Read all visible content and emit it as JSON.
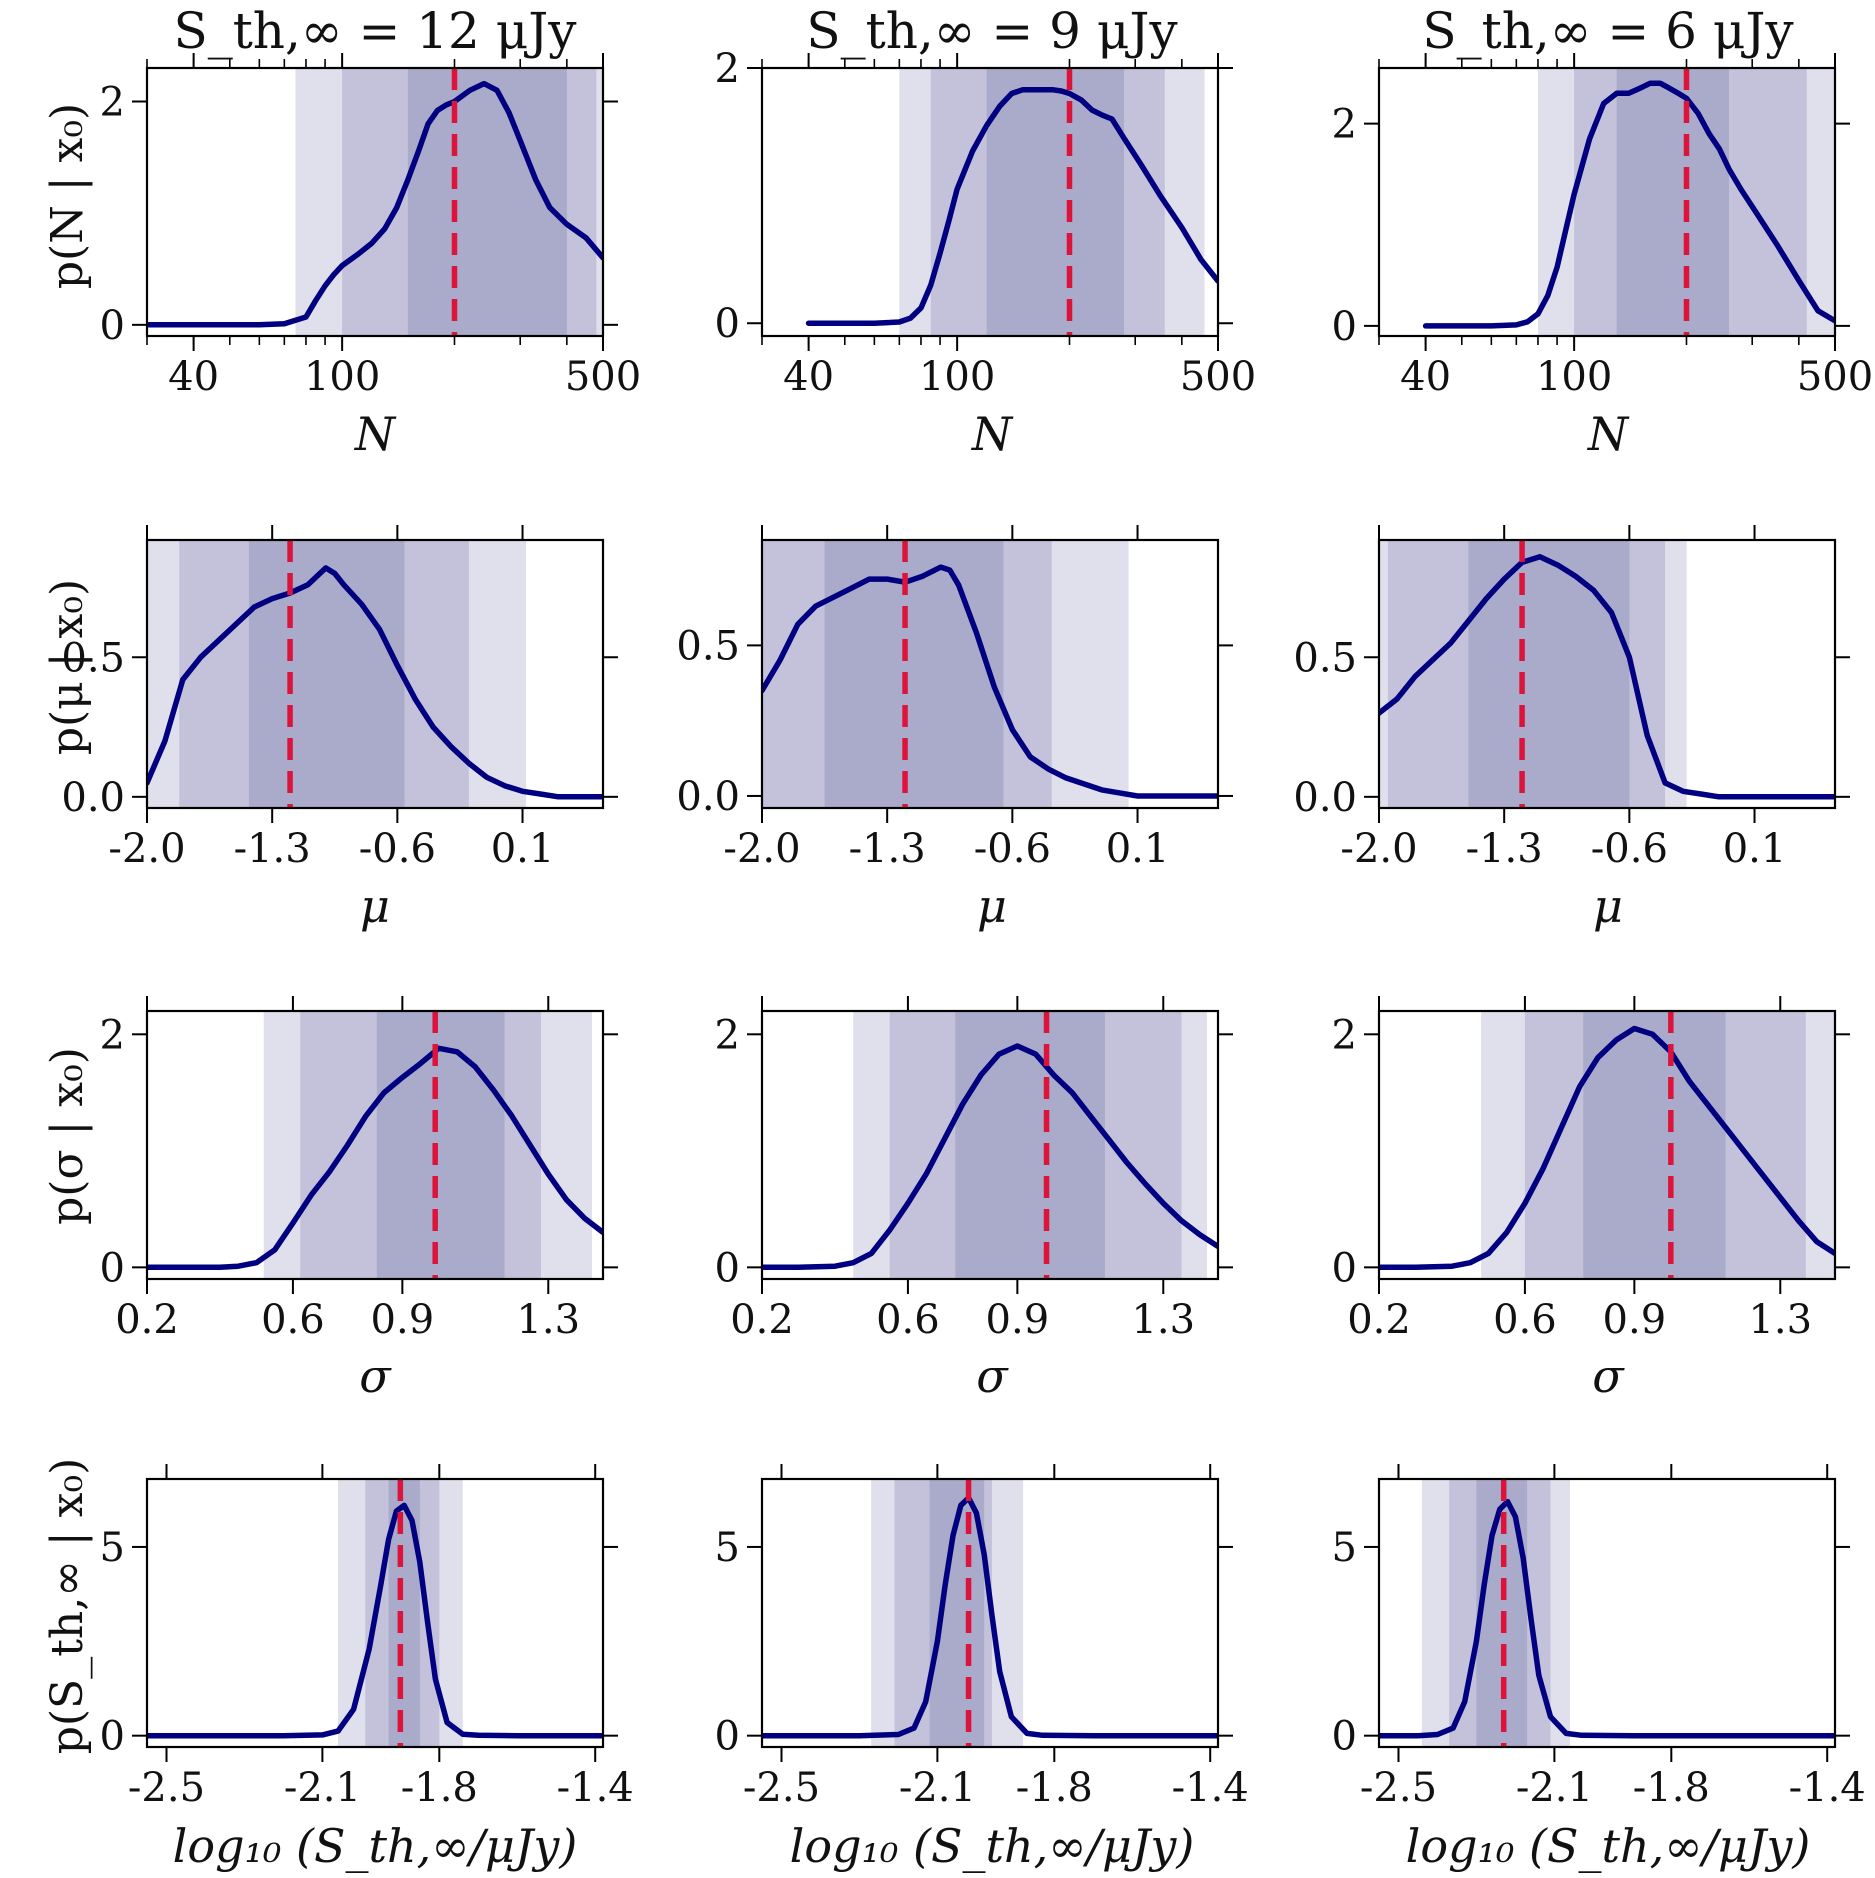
{
  "figure": {
    "columns": [
      {
        "title": "S_th,∞ = 12 μJy"
      },
      {
        "title": "S_th,∞ = 9 μJy"
      },
      {
        "title": "S_th,∞ = 6 μJy"
      }
    ],
    "rows": [
      {
        "ylabel": "p(N | x₀)",
        "xlabel": "N"
      },
      {
        "ylabel": "p(μ | x₀)",
        "xlabel": "μ"
      },
      {
        "ylabel": "p(σ | x₀)",
        "xlabel": "σ"
      },
      {
        "ylabel": "p(S_th,∞ | x₀)",
        "xlabel": "log₁₀ (S_th,∞/μJy)"
      }
    ],
    "colors": {
      "posterior": "#000080",
      "truth": "#dc143c",
      "band_1sigma": "#aaaaca",
      "band_2sigma": "#c3c2da",
      "band_3sigma": "#e0dfec"
    }
  },
  "chart_data": [
    {
      "type": "line",
      "row": 0,
      "col": 0,
      "xscale": "log",
      "xlim": [
        30,
        500
      ],
      "ylim": [
        -0.1,
        2.3
      ],
      "xticks": [
        40,
        100,
        500
      ],
      "xticklabels": [
        "40",
        "100",
        "500"
      ],
      "yticks": [
        0,
        2
      ],
      "yticklabels": [
        "0",
        "2"
      ],
      "x": [
        30,
        60,
        70,
        80,
        85,
        90,
        95,
        100,
        110,
        120,
        130,
        140,
        150,
        160,
        170,
        180,
        190,
        200,
        220,
        240,
        260,
        280,
        300,
        330,
        360,
        400,
        450,
        500
      ],
      "y": [
        0,
        0,
        0.01,
        0.07,
        0.22,
        0.35,
        0.45,
        0.53,
        0.63,
        0.73,
        0.86,
        1.05,
        1.3,
        1.55,
        1.8,
        1.92,
        1.97,
        2.0,
        2.1,
        2.16,
        2.1,
        1.9,
        1.65,
        1.3,
        1.05,
        0.9,
        0.78,
        0.6
      ],
      "truth": 200,
      "bands": [
        [
          75,
          500
        ],
        [
          100,
          480
        ],
        [
          150,
          400
        ]
      ]
    },
    {
      "type": "line",
      "row": 0,
      "col": 1,
      "xscale": "log",
      "xlim": [
        30,
        500
      ],
      "ylim": [
        -0.1,
        2.0
      ],
      "xticks": [
        40,
        100,
        500
      ],
      "xticklabels": [
        "40",
        "100",
        "500"
      ],
      "yticks": [
        0,
        2
      ],
      "yticklabels": [
        "0",
        "2"
      ],
      "x": [
        40,
        60,
        70,
        75,
        80,
        85,
        90,
        95,
        100,
        110,
        120,
        130,
        140,
        150,
        160,
        170,
        180,
        190,
        200,
        215,
        230,
        245,
        260,
        280,
        310,
        350,
        400,
        450,
        500
      ],
      "y": [
        0,
        0,
        0.01,
        0.04,
        0.12,
        0.3,
        0.55,
        0.8,
        1.05,
        1.35,
        1.55,
        1.7,
        1.8,
        1.83,
        1.83,
        1.83,
        1.83,
        1.82,
        1.8,
        1.75,
        1.67,
        1.63,
        1.6,
        1.45,
        1.25,
        1.0,
        0.75,
        0.5,
        0.33
      ],
      "truth": 200,
      "bands": [
        [
          70,
          460
        ],
        [
          85,
          360
        ],
        [
          120,
          280
        ]
      ]
    },
    {
      "type": "line",
      "row": 0,
      "col": 2,
      "xscale": "log",
      "xlim": [
        30,
        500
      ],
      "ylim": [
        -0.1,
        2.55
      ],
      "xticks": [
        40,
        100,
        500
      ],
      "xticklabels": [
        "40",
        "100",
        "500"
      ],
      "yticks": [
        0,
        2
      ],
      "yticklabels": [
        "0",
        "2"
      ],
      "x": [
        40,
        60,
        70,
        75,
        80,
        85,
        90,
        95,
        100,
        110,
        120,
        130,
        140,
        150,
        160,
        170,
        180,
        190,
        200,
        215,
        230,
        245,
        260,
        280,
        310,
        350,
        400,
        450,
        500
      ],
      "y": [
        0,
        0,
        0.01,
        0.04,
        0.12,
        0.3,
        0.58,
        0.95,
        1.3,
        1.85,
        2.2,
        2.3,
        2.3,
        2.35,
        2.4,
        2.4,
        2.35,
        2.3,
        2.25,
        2.1,
        1.9,
        1.75,
        1.55,
        1.35,
        1.1,
        0.8,
        0.45,
        0.15,
        0.05
      ],
      "truth": 200,
      "bands": [
        [
          80,
          500
        ],
        [
          100,
          420
        ],
        [
          130,
          260
        ]
      ]
    },
    {
      "type": "line",
      "row": 1,
      "col": 0,
      "xlim": [
        -2.0,
        0.55
      ],
      "ylim": [
        -0.04,
        0.92
      ],
      "xticks": [
        -2.0,
        -1.3,
        -0.6,
        0.1
      ],
      "xticklabels": [
        "-2.0",
        "-1.3",
        "-0.6",
        "0.1"
      ],
      "yticks": [
        0.0,
        0.5
      ],
      "yticklabels": [
        "0.0",
        "0.5"
      ],
      "x": [
        -2.0,
        -1.9,
        -1.8,
        -1.7,
        -1.6,
        -1.5,
        -1.4,
        -1.3,
        -1.2,
        -1.1,
        -1.0,
        -0.95,
        -0.9,
        -0.8,
        -0.7,
        -0.6,
        -0.5,
        -0.4,
        -0.3,
        -0.2,
        -0.1,
        0.0,
        0.1,
        0.2,
        0.3,
        0.4,
        0.5,
        0.55
      ],
      "y": [
        0.05,
        0.2,
        0.42,
        0.5,
        0.56,
        0.62,
        0.68,
        0.71,
        0.73,
        0.76,
        0.82,
        0.8,
        0.76,
        0.69,
        0.6,
        0.47,
        0.35,
        0.25,
        0.18,
        0.12,
        0.07,
        0.04,
        0.02,
        0.01,
        0,
        0,
        0,
        0
      ],
      "truth": -1.2,
      "bands": [
        [
          -2.0,
          0.12
        ],
        [
          -1.82,
          -0.2
        ],
        [
          -1.43,
          -0.56
        ]
      ]
    },
    {
      "type": "line",
      "row": 1,
      "col": 1,
      "xlim": [
        -2.0,
        0.55
      ],
      "ylim": [
        -0.04,
        0.85
      ],
      "xticks": [
        -2.0,
        -1.3,
        -0.6,
        0.1
      ],
      "xticklabels": [
        "-2.0",
        "-1.3",
        "-0.6",
        "0.1"
      ],
      "yticks": [
        0.0,
        0.5
      ],
      "yticklabels": [
        "0.0",
        "0.5"
      ],
      "x": [
        -2.0,
        -1.9,
        -1.8,
        -1.7,
        -1.6,
        -1.5,
        -1.4,
        -1.3,
        -1.2,
        -1.1,
        -1.0,
        -0.95,
        -0.9,
        -0.8,
        -0.7,
        -0.6,
        -0.5,
        -0.4,
        -0.3,
        -0.2,
        -0.1,
        0.0,
        0.1,
        0.2,
        0.3,
        0.4,
        0.5,
        0.55
      ],
      "y": [
        0.35,
        0.45,
        0.57,
        0.63,
        0.66,
        0.69,
        0.72,
        0.72,
        0.71,
        0.73,
        0.76,
        0.75,
        0.7,
        0.54,
        0.36,
        0.22,
        0.13,
        0.09,
        0.06,
        0.04,
        0.02,
        0.01,
        0,
        0,
        0,
        0,
        0,
        0
      ],
      "truth": -1.2,
      "bands": [
        [
          -2.0,
          0.05
        ],
        [
          -2.0,
          -0.38
        ],
        [
          -1.65,
          -0.65
        ]
      ]
    },
    {
      "type": "line",
      "row": 1,
      "col": 2,
      "xlim": [
        -2.0,
        0.55
      ],
      "ylim": [
        -0.04,
        0.92
      ],
      "xticks": [
        -2.0,
        -1.3,
        -0.6,
        0.1
      ],
      "xticklabels": [
        "-2.0",
        "-1.3",
        "-0.6",
        "0.1"
      ],
      "yticks": [
        0.0,
        0.5
      ],
      "yticklabels": [
        "0.0",
        "0.5"
      ],
      "x": [
        -2.0,
        -1.9,
        -1.8,
        -1.7,
        -1.6,
        -1.5,
        -1.4,
        -1.3,
        -1.2,
        -1.1,
        -1.0,
        -0.95,
        -0.9,
        -0.8,
        -0.7,
        -0.6,
        -0.5,
        -0.4,
        -0.3,
        -0.2,
        -0.1,
        0.0,
        0.1,
        0.2,
        0.3,
        0.4,
        0.5,
        0.55
      ],
      "y": [
        0.3,
        0.35,
        0.43,
        0.49,
        0.55,
        0.63,
        0.71,
        0.78,
        0.84,
        0.86,
        0.83,
        0.81,
        0.79,
        0.74,
        0.66,
        0.5,
        0.22,
        0.05,
        0.02,
        0.01,
        0,
        0,
        0,
        0,
        0,
        0,
        0,
        0
      ],
      "truth": -1.2,
      "bands": [
        [
          -2.0,
          -0.28
        ],
        [
          -1.95,
          -0.4
        ],
        [
          -1.5,
          -0.6
        ]
      ]
    },
    {
      "type": "line",
      "row": 2,
      "col": 0,
      "xlim": [
        0.2,
        1.45
      ],
      "ylim": [
        -0.1,
        2.2
      ],
      "xticks": [
        0.2,
        0.6,
        0.9,
        1.3
      ],
      "xticklabels": [
        "0.2",
        "0.6",
        "0.9",
        "1.3"
      ],
      "yticks": [
        0,
        2
      ],
      "yticklabels": [
        "0",
        "2"
      ],
      "x": [
        0.2,
        0.3,
        0.4,
        0.45,
        0.5,
        0.55,
        0.6,
        0.65,
        0.7,
        0.75,
        0.8,
        0.85,
        0.9,
        0.95,
        1.0,
        1.05,
        1.1,
        1.15,
        1.2,
        1.25,
        1.3,
        1.35,
        1.4,
        1.45
      ],
      "y": [
        0,
        0,
        0,
        0.01,
        0.04,
        0.15,
        0.38,
        0.62,
        0.82,
        1.05,
        1.3,
        1.5,
        1.63,
        1.75,
        1.88,
        1.85,
        1.72,
        1.52,
        1.3,
        1.05,
        0.8,
        0.58,
        0.42,
        0.3
      ],
      "truth": 0.99,
      "bands": [
        [
          0.52,
          1.42
        ],
        [
          0.62,
          1.28
        ],
        [
          0.83,
          1.18
        ]
      ]
    },
    {
      "type": "line",
      "row": 2,
      "col": 1,
      "xlim": [
        0.2,
        1.45
      ],
      "ylim": [
        -0.1,
        2.2
      ],
      "xticks": [
        0.2,
        0.6,
        0.9,
        1.3
      ],
      "xticklabels": [
        "0.2",
        "0.6",
        "0.9",
        "1.3"
      ],
      "yticks": [
        0,
        2
      ],
      "yticklabels": [
        "0",
        "2"
      ],
      "x": [
        0.2,
        0.3,
        0.4,
        0.45,
        0.5,
        0.55,
        0.6,
        0.65,
        0.7,
        0.75,
        0.8,
        0.85,
        0.9,
        0.95,
        1.0,
        1.05,
        1.1,
        1.15,
        1.2,
        1.25,
        1.3,
        1.35,
        1.4,
        1.45
      ],
      "y": [
        0,
        0,
        0.01,
        0.04,
        0.12,
        0.32,
        0.55,
        0.8,
        1.1,
        1.4,
        1.65,
        1.83,
        1.9,
        1.83,
        1.65,
        1.5,
        1.3,
        1.1,
        0.9,
        0.72,
        0.55,
        0.4,
        0.28,
        0.18
      ],
      "truth": 0.98,
      "bands": [
        [
          0.45,
          1.42
        ],
        [
          0.55,
          1.35
        ],
        [
          0.73,
          1.14
        ]
      ]
    },
    {
      "type": "line",
      "row": 2,
      "col": 2,
      "xlim": [
        0.2,
        1.45
      ],
      "ylim": [
        -0.1,
        2.2
      ],
      "xticks": [
        0.2,
        0.6,
        0.9,
        1.3
      ],
      "xticklabels": [
        "0.2",
        "0.6",
        "0.9",
        "1.3"
      ],
      "yticks": [
        0,
        2
      ],
      "yticklabels": [
        "0",
        "2"
      ],
      "x": [
        0.2,
        0.3,
        0.4,
        0.45,
        0.5,
        0.55,
        0.6,
        0.65,
        0.7,
        0.75,
        0.8,
        0.85,
        0.9,
        0.95,
        1.0,
        1.05,
        1.1,
        1.15,
        1.2,
        1.25,
        1.3,
        1.35,
        1.4,
        1.45
      ],
      "y": [
        0,
        0,
        0.01,
        0.04,
        0.12,
        0.3,
        0.55,
        0.85,
        1.2,
        1.55,
        1.8,
        1.95,
        2.05,
        2.0,
        1.85,
        1.6,
        1.4,
        1.2,
        1.0,
        0.8,
        0.6,
        0.4,
        0.22,
        0.12
      ],
      "truth": 1.0,
      "bands": [
        [
          0.48,
          1.46
        ],
        [
          0.6,
          1.37
        ],
        [
          0.76,
          1.15
        ]
      ]
    },
    {
      "type": "line",
      "row": 3,
      "col": 0,
      "xlim": [
        -2.55,
        -1.38
      ],
      "ylim": [
        -0.3,
        6.8
      ],
      "xticks": [
        -2.5,
        -2.1,
        -1.8,
        -1.4
      ],
      "xticklabels": [
        "-2.5",
        "-2.1",
        "-1.8",
        "-1.4"
      ],
      "yticks": [
        0,
        5
      ],
      "yticklabels": [
        "0",
        "5"
      ],
      "x": [
        -2.55,
        -2.2,
        -2.1,
        -2.06,
        -2.02,
        -1.98,
        -1.95,
        -1.93,
        -1.91,
        -1.89,
        -1.87,
        -1.85,
        -1.83,
        -1.81,
        -1.78,
        -1.74,
        -1.7,
        -1.6,
        -1.38
      ],
      "y": [
        0,
        0,
        0.02,
        0.12,
        0.7,
        2.3,
        4.0,
        5.2,
        5.95,
        6.1,
        5.7,
        4.6,
        3.0,
        1.5,
        0.35,
        0.04,
        0.01,
        0,
        0
      ],
      "truth": -1.9,
      "bands": [
        [
          -2.06,
          -1.74
        ],
        [
          -1.99,
          -1.8
        ],
        [
          -1.93,
          -1.85
        ]
      ]
    },
    {
      "type": "line",
      "row": 3,
      "col": 1,
      "xlim": [
        -2.55,
        -1.38
      ],
      "ylim": [
        -0.3,
        6.8
      ],
      "xticks": [
        -2.5,
        -2.1,
        -1.8,
        -1.4
      ],
      "xticklabels": [
        "-2.5",
        "-2.1",
        "-1.8",
        "-1.4"
      ],
      "yticks": [
        0,
        5
      ],
      "yticklabels": [
        "0",
        "5"
      ],
      "x": [
        -2.55,
        -2.3,
        -2.2,
        -2.16,
        -2.13,
        -2.1,
        -2.08,
        -2.06,
        -2.04,
        -2.02,
        -2.0,
        -1.98,
        -1.96,
        -1.94,
        -1.91,
        -1.87,
        -1.83,
        -1.7,
        -1.38
      ],
      "y": [
        0,
        0,
        0.03,
        0.2,
        0.9,
        2.5,
        4.0,
        5.3,
        6.1,
        6.3,
        5.9,
        4.8,
        3.2,
        1.7,
        0.5,
        0.06,
        0.01,
        0,
        0
      ],
      "truth": -2.02,
      "bands": [
        [
          -2.27,
          -1.88
        ],
        [
          -2.21,
          -1.96
        ],
        [
          -2.12,
          -1.98
        ]
      ]
    },
    {
      "type": "line",
      "row": 3,
      "col": 2,
      "xlim": [
        -2.55,
        -1.38
      ],
      "ylim": [
        -0.3,
        6.8
      ],
      "xticks": [
        -2.5,
        -2.1,
        -1.8,
        -1.4
      ],
      "xticklabels": [
        "-2.5",
        "-2.1",
        "-1.8",
        "-1.4"
      ],
      "yticks": [
        0,
        5
      ],
      "yticklabels": [
        "0",
        "5"
      ],
      "x": [
        -2.55,
        -2.45,
        -2.4,
        -2.36,
        -2.33,
        -2.3,
        -2.28,
        -2.26,
        -2.24,
        -2.22,
        -2.2,
        -2.18,
        -2.16,
        -2.14,
        -2.11,
        -2.07,
        -2.03,
        -1.9,
        -1.38
      ],
      "y": [
        0,
        0,
        0.03,
        0.2,
        0.9,
        2.5,
        4.0,
        5.3,
        6.0,
        6.2,
        5.8,
        4.7,
        3.1,
        1.6,
        0.5,
        0.06,
        0.01,
        0,
        0
      ],
      "truth": -2.23,
      "bands": [
        [
          -2.44,
          -2.06
        ],
        [
          -2.37,
          -2.11
        ],
        [
          -2.3,
          -2.17
        ]
      ]
    }
  ]
}
